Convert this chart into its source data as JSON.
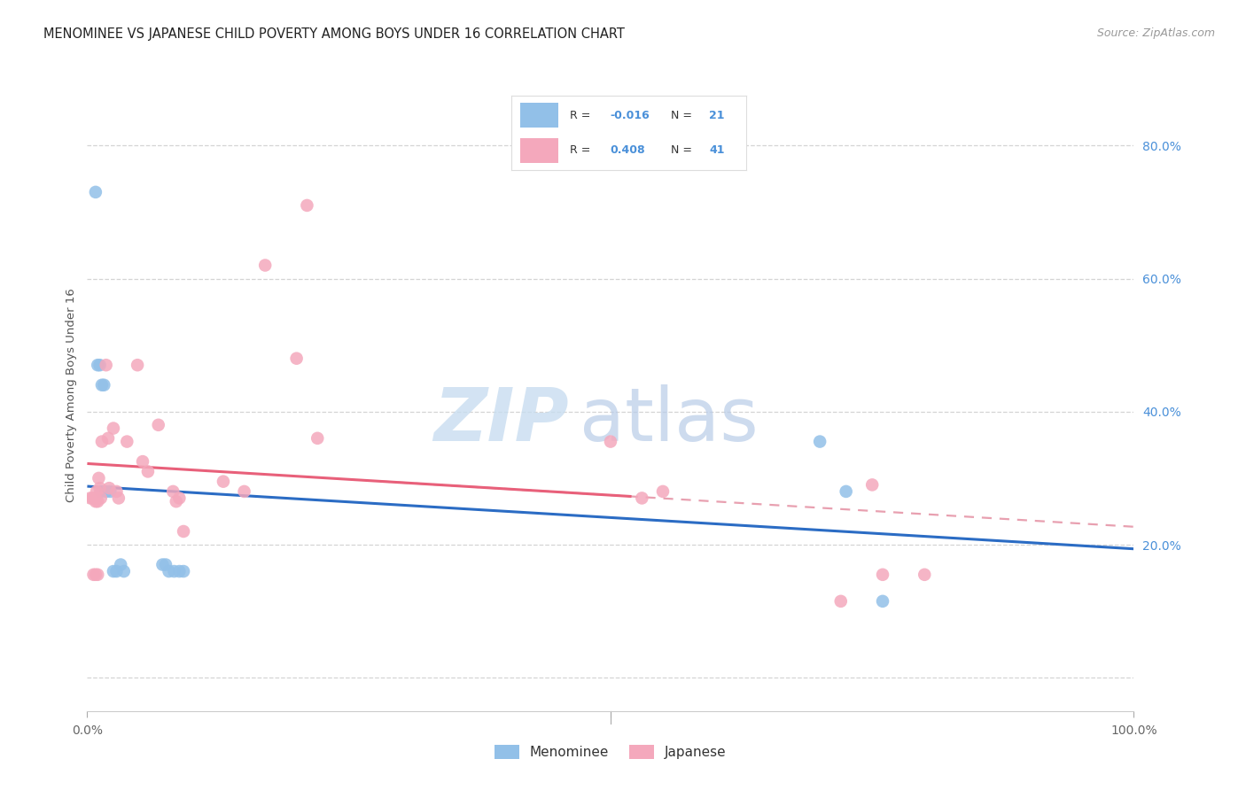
{
  "title": "MENOMINEE VS JAPANESE CHILD POVERTY AMONG BOYS UNDER 16 CORRELATION CHART",
  "source": "Source: ZipAtlas.com",
  "ylabel": "Child Poverty Among Boys Under 16",
  "xlim": [
    0.0,
    1.0
  ],
  "ylim": [
    -0.05,
    0.9
  ],
  "menominee_color": "#92C0E8",
  "japanese_color": "#F4A8BC",
  "trendline_menominee_color": "#2b6cc4",
  "trendline_japanese_color": "#E8607A",
  "trendline_dashed_color": "#E8A0B0",
  "menominee_x": [
    0.008,
    0.01,
    0.012,
    0.013,
    0.014,
    0.016,
    0.018,
    0.022,
    0.025,
    0.028,
    0.032,
    0.035,
    0.072,
    0.075,
    0.078,
    0.083,
    0.088,
    0.092,
    0.7,
    0.725,
    0.76
  ],
  "menominee_y": [
    0.73,
    0.47,
    0.47,
    0.28,
    0.44,
    0.44,
    0.28,
    0.28,
    0.16,
    0.16,
    0.17,
    0.16,
    0.17,
    0.17,
    0.16,
    0.16,
    0.16,
    0.16,
    0.355,
    0.28,
    0.115
  ],
  "japanese_x": [
    0.003,
    0.005,
    0.006,
    0.007,
    0.008,
    0.008,
    0.009,
    0.01,
    0.01,
    0.011,
    0.012,
    0.013,
    0.014,
    0.018,
    0.02,
    0.021,
    0.025,
    0.028,
    0.03,
    0.038,
    0.048,
    0.053,
    0.058,
    0.068,
    0.082,
    0.085,
    0.088,
    0.092,
    0.13,
    0.15,
    0.17,
    0.2,
    0.21,
    0.22,
    0.5,
    0.53,
    0.55,
    0.72,
    0.75,
    0.76,
    0.8
  ],
  "japanese_y": [
    0.27,
    0.27,
    0.155,
    0.27,
    0.265,
    0.155,
    0.28,
    0.265,
    0.155,
    0.3,
    0.285,
    0.27,
    0.355,
    0.47,
    0.36,
    0.285,
    0.375,
    0.28,
    0.27,
    0.355,
    0.47,
    0.325,
    0.31,
    0.38,
    0.28,
    0.265,
    0.27,
    0.22,
    0.295,
    0.28,
    0.62,
    0.48,
    0.71,
    0.36,
    0.355,
    0.27,
    0.28,
    0.115,
    0.29,
    0.155,
    0.155
  ],
  "marker_size": 110,
  "grid_color": "#d4d4d4",
  "background_color": "#ffffff",
  "title_fontsize": 10.5,
  "axis_label_fontsize": 9.5,
  "tick_fontsize": 10,
  "source_fontsize": 9
}
